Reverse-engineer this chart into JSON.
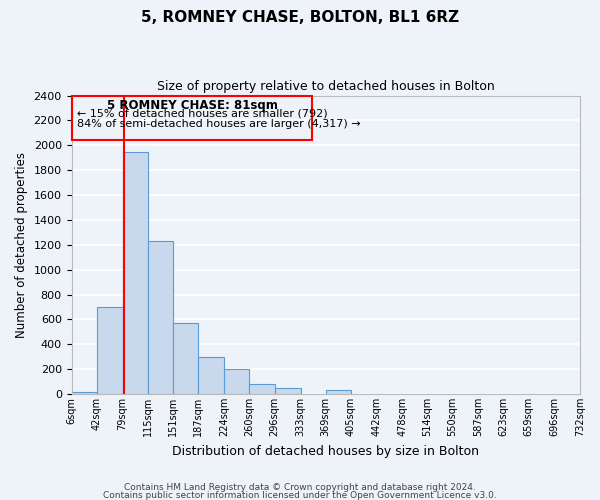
{
  "title": "5, ROMNEY CHASE, BOLTON, BL1 6RZ",
  "subtitle": "Size of property relative to detached houses in Bolton",
  "xlabel": "Distribution of detached houses by size in Bolton",
  "ylabel": "Number of detached properties",
  "bar_edges": [
    6,
    42,
    79,
    115,
    151,
    187,
    224,
    260,
    296,
    333,
    369,
    405,
    442,
    478,
    514,
    550,
    587,
    623,
    659,
    696,
    732
  ],
  "bar_heights": [
    20,
    700,
    1950,
    1230,
    575,
    300,
    200,
    80,
    45,
    0,
    35,
    0,
    0,
    0,
    0,
    0,
    0,
    0,
    0,
    0
  ],
  "bar_color": "#c9d9ed",
  "bar_edge_color": "#5b9bd5",
  "property_line_x": 81,
  "property_line_color": "red",
  "ylim": [
    0,
    2400
  ],
  "yticks": [
    0,
    200,
    400,
    600,
    800,
    1000,
    1200,
    1400,
    1600,
    1800,
    2000,
    2200,
    2400
  ],
  "annotation_title": "5 ROMNEY CHASE: 81sqm",
  "annotation_line1": "← 15% of detached houses are smaller (792)",
  "annotation_line2": "84% of semi-detached houses are larger (4,317) →",
  "footer_line1": "Contains HM Land Registry data © Crown copyright and database right 2024.",
  "footer_line2": "Contains public sector information licensed under the Open Government Licence v3.0.",
  "background_color": "#eef2f9",
  "grid_color": "#ffffff"
}
